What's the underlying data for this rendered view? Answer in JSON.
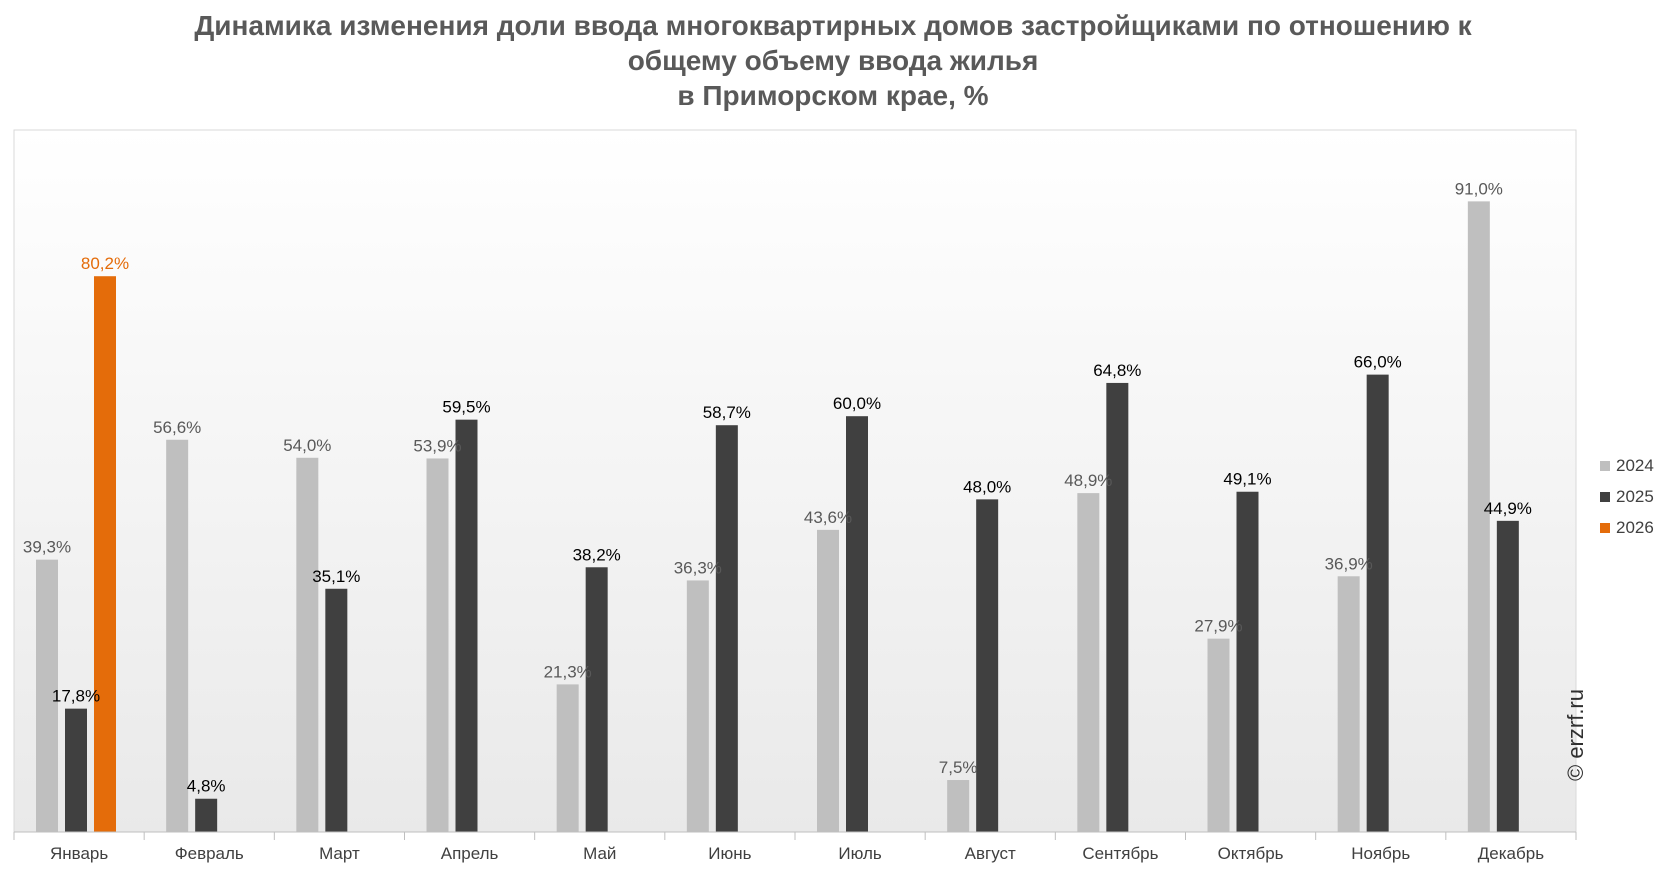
{
  "title_lines": [
    "Динамика изменения доли ввода многоквартирных домов застройщиками по отношению к",
    "общему объему ввода жилья",
    "в Приморском крае, %"
  ],
  "watermark": "© erzrf.ru",
  "colors": {
    "2024": "#bfbfbf",
    "2025": "#404040",
    "2026": "#e46c0a"
  },
  "chart_data": {
    "type": "bar",
    "title": "Динамика изменения доли ввода многоквартирных домов застройщиками по отношению к общему объему ввода жилья в Приморском крае, %",
    "categories": [
      "Январь",
      "Февраль",
      "Март",
      "Апрель",
      "Май",
      "Июнь",
      "Июль",
      "Август",
      "Сентябрь",
      "Октябрь",
      "Ноябрь",
      "Декабрь"
    ],
    "series": [
      {
        "name": "2024",
        "color": "#bfbfbf",
        "values": [
          39.3,
          56.6,
          54.0,
          53.9,
          21.3,
          36.3,
          43.6,
          7.5,
          48.9,
          27.9,
          36.9,
          91.0
        ],
        "labels": [
          "39,3%",
          "56,6%",
          "54,0%",
          "53,9%",
          "21,3%",
          "36,3%",
          "43,6%",
          "7,5%",
          "48,9%",
          "27,9%",
          "36,9%",
          "91,0%"
        ]
      },
      {
        "name": "2025",
        "color": "#404040",
        "values": [
          17.8,
          4.8,
          35.1,
          59.5,
          38.2,
          58.7,
          60.0,
          48.0,
          64.8,
          49.1,
          66.0,
          44.9
        ],
        "labels": [
          "17,8%",
          "4,8%",
          "35,1%",
          "59,5%",
          "38,2%",
          "58,7%",
          "60,0%",
          "48,0%",
          "64,8%",
          "49,1%",
          "66,0%",
          "44,9%"
        ]
      },
      {
        "name": "2026",
        "color": "#e46c0a",
        "values": [
          80.2,
          null,
          null,
          null,
          null,
          null,
          null,
          null,
          null,
          null,
          null,
          null
        ],
        "labels": [
          "80,2%",
          null,
          null,
          null,
          null,
          null,
          null,
          null,
          null,
          null,
          null,
          null
        ]
      }
    ],
    "ylim": [
      0,
      100
    ],
    "grid": false,
    "legend_position": "right"
  }
}
